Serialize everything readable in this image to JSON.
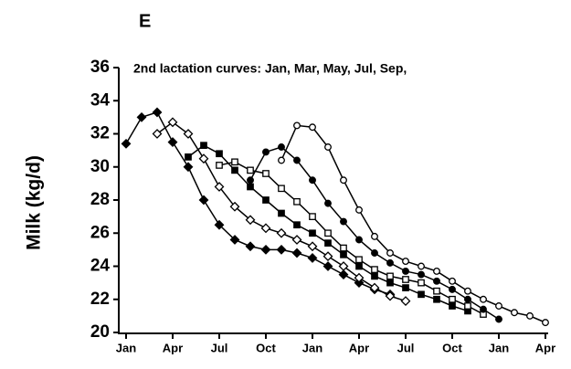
{
  "chart_data": {
    "type": "line",
    "panel_label": "E",
    "title": "2nd lactation curves: Jan, Mar, May, Jul, Sep,",
    "y_label": "Milk (kg/d)",
    "x": [
      0,
      1,
      2,
      3,
      4,
      5,
      6,
      7,
      8,
      9,
      10,
      11,
      12,
      13,
      14,
      15,
      16,
      17,
      18,
      19,
      20,
      21,
      22,
      23,
      24,
      25,
      26,
      27
    ],
    "xlim": [
      0,
      27
    ],
    "xticks": [
      {
        "value": 0,
        "label": "Jan"
      },
      {
        "value": 3,
        "label": "Apr"
      },
      {
        "value": 6,
        "label": "Jul"
      },
      {
        "value": 9,
        "label": "Oct"
      },
      {
        "value": 12,
        "label": "Jan"
      },
      {
        "value": 15,
        "label": "Apr"
      },
      {
        "value": 18,
        "label": "Jul"
      },
      {
        "value": 21,
        "label": "Oct"
      },
      {
        "value": 24,
        "label": "Jan"
      },
      {
        "value": 27,
        "label": "Apr"
      }
    ],
    "ylim": [
      20,
      36
    ],
    "yticks": [
      20,
      22,
      24,
      26,
      28,
      30,
      32,
      34,
      36
    ],
    "series": [
      {
        "color": "#000000",
        "marker": "diamond",
        "filled": true,
        "values": [
          31.4,
          33.0,
          33.3,
          31.5,
          30.0,
          28.0,
          26.5,
          25.6,
          25.2,
          25.0,
          25.0,
          24.8,
          24.5,
          24.0,
          23.5,
          23.0,
          22.6,
          22.3,
          null,
          null,
          null,
          null,
          null,
          null,
          null,
          null,
          null,
          null
        ]
      },
      {
        "color": "#000000",
        "marker": "diamond",
        "filled": false,
        "values": [
          null,
          null,
          32.0,
          32.7,
          32.0,
          30.5,
          28.8,
          27.6,
          26.8,
          26.3,
          26.0,
          25.6,
          25.2,
          24.6,
          24.0,
          23.3,
          22.7,
          22.2,
          21.9,
          null,
          null,
          null,
          null,
          null,
          null,
          null,
          null,
          null
        ]
      },
      {
        "color": "#000000",
        "marker": "square",
        "filled": true,
        "values": [
          null,
          null,
          null,
          null,
          30.6,
          31.3,
          30.8,
          29.8,
          28.8,
          28.0,
          27.2,
          26.5,
          26.0,
          25.4,
          24.7,
          24.0,
          23.4,
          23.0,
          22.7,
          22.3,
          22.0,
          21.6,
          21.3,
          null,
          null,
          null,
          null,
          null
        ]
      },
      {
        "color": "#000000",
        "marker": "square",
        "filled": false,
        "values": [
          null,
          null,
          null,
          null,
          null,
          null,
          30.1,
          30.3,
          29.8,
          29.6,
          28.7,
          27.9,
          27.0,
          26.0,
          25.1,
          24.4,
          23.8,
          23.4,
          23.2,
          23.0,
          22.5,
          22.0,
          21.6,
          21.1,
          null,
          null,
          null,
          null
        ]
      },
      {
        "color": "#000000",
        "marker": "circle",
        "filled": true,
        "values": [
          null,
          null,
          null,
          null,
          null,
          null,
          null,
          null,
          29.2,
          30.9,
          31.2,
          30.4,
          29.2,
          27.8,
          26.7,
          25.6,
          24.8,
          24.2,
          23.7,
          23.5,
          23.1,
          22.6,
          22.0,
          21.4,
          20.8,
          null,
          null,
          null
        ]
      },
      {
        "color": "#000000",
        "marker": "circle",
        "filled": false,
        "values": [
          null,
          null,
          null,
          null,
          null,
          null,
          null,
          null,
          null,
          null,
          30.4,
          32.5,
          32.4,
          31.2,
          29.2,
          27.4,
          25.8,
          24.8,
          24.3,
          24.0,
          23.7,
          23.1,
          22.5,
          22.0,
          21.6,
          21.2,
          21.0,
          20.6
        ]
      }
    ]
  }
}
